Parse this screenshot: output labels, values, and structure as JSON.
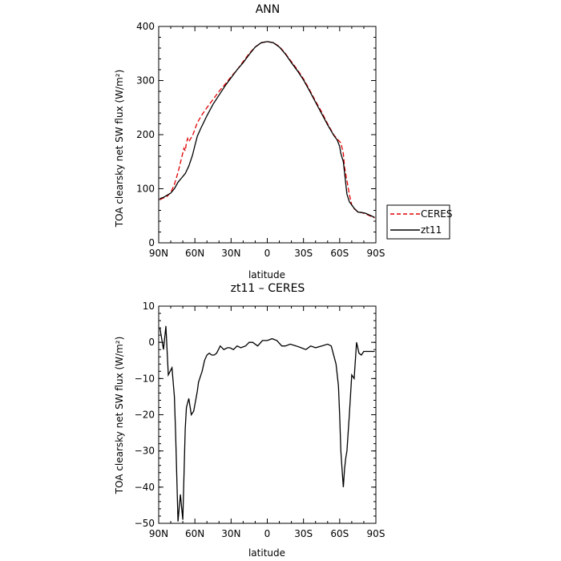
{
  "chart_data": [
    {
      "type": "line",
      "title": "ANN",
      "xlabel": "latitude",
      "ylabel": "TOA clearsky net SW flux (W/m²)",
      "xticks": [
        "90N",
        "60N",
        "30N",
        "0",
        "30S",
        "60S",
        "90S"
      ],
      "yticks": [
        "0",
        "100",
        "200",
        "300",
        "400"
      ],
      "xlim": [
        90,
        -90
      ],
      "ylim": [
        0,
        400
      ],
      "grid": false,
      "legend": "outside-right",
      "series": [
        {
          "name": "CERES",
          "color": "#e00000",
          "style": "dashed",
          "x": [
            89,
            86,
            83,
            80,
            77,
            74,
            71,
            69,
            68,
            67,
            66,
            65,
            62,
            58,
            54,
            50,
            45,
            40,
            35,
            30,
            25,
            20,
            15,
            10,
            5,
            0,
            -5,
            -10,
            -15,
            -20,
            -25,
            -30,
            -35,
            -40,
            -45,
            -50,
            -55,
            -58,
            -60,
            -61,
            -63,
            -64,
            -66,
            -68,
            -70,
            -72,
            -75,
            -78,
            -81,
            -84,
            -87,
            -89
          ],
          "y": [
            80,
            83,
            86,
            93,
            108,
            130,
            157,
            175,
            170,
            185,
            193,
            187,
            198,
            222,
            237,
            250,
            265,
            280,
            293,
            307,
            320,
            335,
            350,
            362,
            370,
            372,
            370,
            363,
            350,
            335,
            320,
            303,
            283,
            262,
            242,
            220,
            200,
            192,
            187,
            185,
            165,
            140,
            115,
            90,
            70,
            63,
            58,
            56,
            54,
            51,
            48,
            46
          ]
        },
        {
          "name": "zt11",
          "color": "#000000",
          "style": "solid",
          "x": [
            89,
            86,
            83,
            80,
            77,
            74,
            71,
            68,
            65,
            62,
            60,
            58,
            55,
            50,
            45,
            40,
            35,
            30,
            25,
            20,
            15,
            10,
            5,
            0,
            -5,
            -10,
            -15,
            -20,
            -25,
            -30,
            -35,
            -40,
            -45,
            -50,
            -55,
            -58,
            -60,
            -61,
            -63,
            -64,
            -65,
            -66,
            -68,
            -70,
            -72,
            -75,
            -78,
            -81,
            -84,
            -87,
            -89
          ],
          "y": [
            82,
            84,
            88,
            92,
            100,
            112,
            120,
            128,
            142,
            162,
            180,
            197,
            212,
            235,
            256,
            273,
            290,
            305,
            320,
            333,
            348,
            362,
            370,
            372,
            370,
            362,
            349,
            333,
            318,
            301,
            281,
            260,
            239,
            218,
            199,
            190,
            178,
            165,
            150,
            130,
            110,
            90,
            76,
            70,
            64,
            57,
            56,
            55,
            52,
            49,
            47
          ]
        }
      ]
    },
    {
      "type": "line",
      "title": "zt11 – CERES",
      "xlabel": "latitude",
      "ylabel": "TOA clearsky net SW flux (W/m²)",
      "xticks": [
        "90N",
        "60N",
        "30N",
        "0",
        "30S",
        "60S",
        "90S"
      ],
      "yticks": [
        "10",
        "0",
        "−10",
        "−20",
        "−30",
        "−40",
        "−50"
      ],
      "xlim": [
        90,
        -90
      ],
      "ylim": [
        -50,
        10
      ],
      "grid": false,
      "series": [
        {
          "name": "",
          "color": "#000000",
          "style": "solid",
          "x": [
            89,
            86,
            84,
            82,
            79,
            77,
            76,
            74,
            72,
            70,
            68,
            67,
            65,
            63,
            61,
            58,
            57,
            55,
            54,
            52,
            50,
            48,
            46,
            44,
            42,
            39,
            36,
            33,
            31,
            28,
            25,
            22,
            18,
            15,
            12,
            8,
            4,
            0,
            -4,
            -8,
            -12,
            -15,
            -19,
            -24,
            -28,
            -32,
            -36,
            -40,
            -45,
            -50,
            -53,
            -57,
            -59,
            -60,
            -61,
            -62,
            -63,
            -64,
            -65,
            -66,
            -67,
            -68,
            -70,
            -72,
            -74,
            -76,
            -78,
            -80,
            -82,
            -84,
            -86,
            -88,
            -89
          ],
          "y": [
            4,
            -2,
            4.5,
            -9,
            -7,
            -15,
            -25,
            -49.5,
            -42,
            -49,
            -24,
            -18,
            -15.5,
            -20,
            -19,
            -13.5,
            -11,
            -9,
            -8,
            -5,
            -3.5,
            -3,
            -3.5,
            -3.5,
            -3,
            -1,
            -2,
            -1.5,
            -1.5,
            -2,
            -1,
            -1.5,
            -1,
            0,
            0,
            -1,
            0.5,
            0.5,
            1,
            0.5,
            -1,
            -1,
            -0.5,
            -1,
            -1.5,
            -2,
            -1,
            -1.5,
            -1,
            -0.5,
            -1,
            -6,
            -12,
            -20,
            -30,
            -35,
            -40,
            -35,
            -32,
            -30,
            -25,
            -20,
            -9,
            -10,
            0,
            -3,
            -3.5,
            -2.5,
            -2.5,
            -2.5,
            -2.5,
            -2.5,
            -2.5
          ]
        }
      ]
    }
  ]
}
